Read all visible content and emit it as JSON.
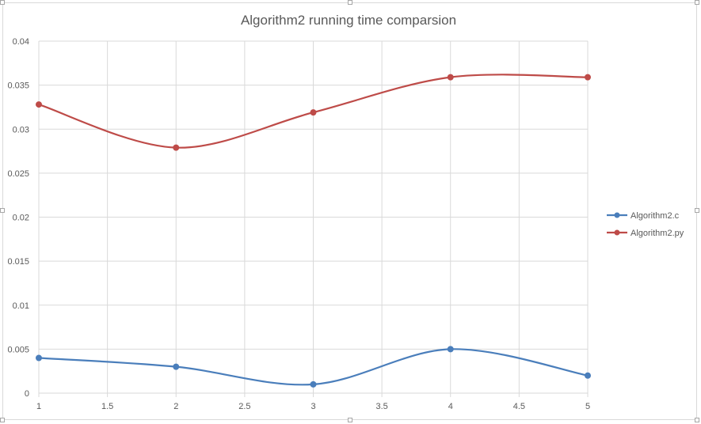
{
  "chart_data": {
    "type": "line",
    "title": "Algorithm2 running time comparsion",
    "xlabel": "",
    "ylabel": "",
    "xlim": [
      1,
      5
    ],
    "ylim": [
      0,
      0.04
    ],
    "x_ticks": [
      1,
      1.5,
      2,
      2.5,
      3,
      3.5,
      4,
      4.5,
      5
    ],
    "x_tick_labels": [
      "1",
      "1.5",
      "2",
      "2.5",
      "3",
      "3.5",
      "4",
      "4.5",
      "5"
    ],
    "y_ticks": [
      0,
      0.005,
      0.01,
      0.015,
      0.02,
      0.025,
      0.03,
      0.035,
      0.04
    ],
    "y_tick_labels": [
      "0",
      "0.005",
      "0.01",
      "0.015",
      "0.02",
      "0.025",
      "0.03",
      "0.035",
      "0.04"
    ],
    "grid": true,
    "smooth": true,
    "legend_position": "right",
    "x": [
      1,
      2,
      3,
      4,
      5
    ],
    "series": [
      {
        "name": "Algorithm2.c",
        "color": "#4a7ebb",
        "values": [
          0.004,
          0.003,
          0.001,
          0.005,
          0.002
        ]
      },
      {
        "name": "Algorithm2.py",
        "color": "#be4b48",
        "values": [
          0.0328,
          0.0279,
          0.0319,
          0.0359,
          0.0359
        ]
      }
    ]
  }
}
